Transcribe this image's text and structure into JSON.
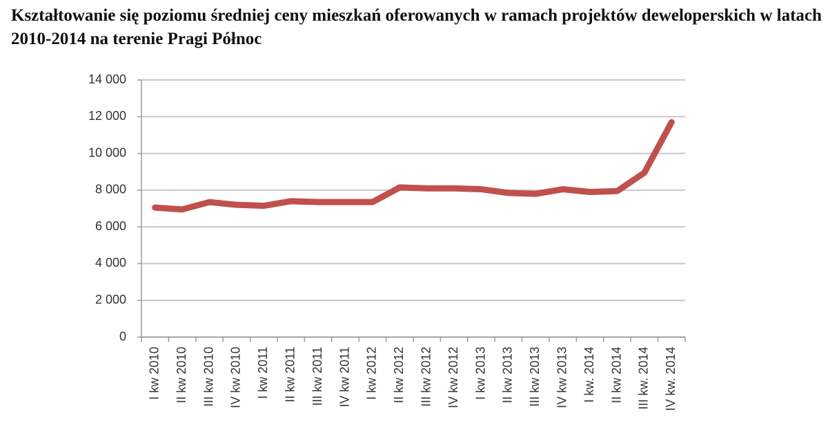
{
  "chart_data": {
    "type": "line",
    "title": "Kształtowanie się poziomu średniej ceny mieszkań oferowanych w ramach projektów deweloperskich w latach 2010-2014 na terenie Pragi Północ",
    "categories": [
      "I kw 2010",
      "II kw 2010",
      "III kw 2010",
      "IV kw 2010",
      "I kw 2011",
      "II kw 2011",
      "III kw 2011",
      "IV kw 2011",
      "I kw 2012",
      "II kw 2012",
      "III kw 2012",
      "IV kw 2012",
      "I kw 2013",
      "II kw 2013",
      "III kw 2013",
      "IV kw 2013",
      "I kw. 2014",
      "II kw 2014",
      "III kw. 2014",
      "IV kw. 2014"
    ],
    "series": [
      {
        "color": "#c0504d",
        "values": [
          7050,
          6950,
          7350,
          7200,
          7150,
          7400,
          7350,
          7350,
          7350,
          8150,
          8100,
          8100,
          8050,
          7850,
          7800,
          8050,
          7900,
          7950,
          8950,
          11700
        ]
      }
    ],
    "ylim": [
      0,
      14000
    ],
    "yticks": [
      0,
      {
        "value": 2000,
        "label": "2 000"
      },
      {
        "value": 4000,
        "label": "4 000"
      },
      {
        "value": 6000,
        "label": "6 000"
      },
      {
        "value": 8000,
        "label": "8 000"
      },
      {
        "value": 10000,
        "label": "10 000"
      },
      {
        "value": 12000,
        "label": "12 000"
      },
      {
        "value": 14000,
        "label": "14 000"
      }
    ],
    "grid": true
  }
}
